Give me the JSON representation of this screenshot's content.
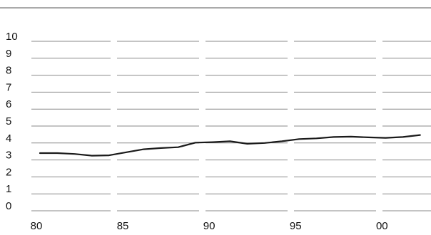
{
  "chart_data": {
    "type": "line",
    "title": "",
    "xlabel": "",
    "ylabel": "",
    "ylim": [
      0,
      10
    ],
    "xlim": [
      1980,
      2002.3
    ],
    "grid": true,
    "legend": "none",
    "yticks": [
      "0",
      "1",
      "2",
      "3",
      "4",
      "5",
      "6",
      "7",
      "8",
      "9",
      "10"
    ],
    "xticks": [
      {
        "value": 1980,
        "label": "80"
      },
      {
        "value": 1985,
        "label": "85"
      },
      {
        "value": 1990,
        "label": "90"
      },
      {
        "value": 1995,
        "label": "95"
      },
      {
        "value": 2000,
        "label": "00"
      }
    ],
    "series": [
      {
        "color": "#1a1a1a",
        "x": [
          1980,
          1981,
          1982,
          1983,
          1984,
          1985,
          1986,
          1987,
          1988,
          1989,
          1990,
          1991,
          1992,
          1993,
          1994,
          1995,
          1996,
          1997,
          1998,
          1999,
          2000,
          2001,
          2002
        ],
        "values": [
          3.15,
          3.15,
          3.1,
          3.0,
          3.02,
          3.2,
          3.38,
          3.45,
          3.5,
          3.77,
          3.8,
          3.85,
          3.7,
          3.75,
          3.85,
          3.98,
          4.02,
          4.1,
          4.12,
          4.08,
          4.05,
          4.1,
          4.22
        ]
      }
    ]
  }
}
